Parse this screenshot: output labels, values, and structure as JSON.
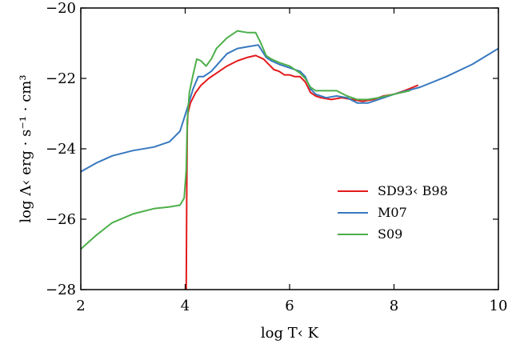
{
  "chart_data": {
    "type": "line",
    "xlabel": "log T‹ K",
    "ylabel": "log Λ‹ erg · s⁻¹ · cm³",
    "xlim": [
      2,
      10
    ],
    "ylim": [
      -28,
      -20
    ],
    "xticks": [
      2,
      4,
      6,
      8,
      10
    ],
    "yticks": [
      -28,
      -26,
      -24,
      -22,
      -20
    ],
    "ytick_labels": [
      "−28",
      "−26",
      "−24",
      "−22",
      "−20"
    ],
    "grid": false,
    "legend": {
      "position": "center-right"
    },
    "series": [
      {
        "name": "SD93‹ B98",
        "color": "#e31a1c",
        "x": [
          4.02,
          4.03,
          4.04,
          4.05,
          4.1,
          4.2,
          4.3,
          4.45,
          4.6,
          4.8,
          5.0,
          5.2,
          5.35,
          5.5,
          5.6,
          5.7,
          5.8,
          5.9,
          6.0,
          6.1,
          6.2,
          6.3,
          6.4,
          6.5,
          6.6,
          6.8,
          7.0,
          7.2,
          7.4,
          7.6,
          7.8,
          8.0,
          8.2,
          8.45
        ],
        "y": [
          -28.0,
          -25.0,
          -23.4,
          -23.0,
          -22.7,
          -22.4,
          -22.2,
          -22.0,
          -21.85,
          -21.65,
          -21.5,
          -21.4,
          -21.35,
          -21.45,
          -21.6,
          -21.75,
          -21.8,
          -21.9,
          -21.9,
          -21.95,
          -21.95,
          -22.1,
          -22.4,
          -22.5,
          -22.55,
          -22.6,
          -22.55,
          -22.6,
          -22.65,
          -22.6,
          -22.5,
          -22.45,
          -22.35,
          -22.2
        ]
      },
      {
        "name": "M07",
        "color": "#3778bf",
        "x": [
          2.0,
          2.3,
          2.6,
          3.0,
          3.4,
          3.7,
          3.9,
          4.05,
          4.15,
          4.25,
          4.35,
          4.5,
          4.65,
          4.8,
          5.0,
          5.2,
          5.4,
          5.55,
          5.65,
          5.8,
          6.0,
          6.2,
          6.3,
          6.4,
          6.5,
          6.7,
          6.9,
          7.1,
          7.3,
          7.5,
          7.7,
          8.0,
          8.5,
          9.0,
          9.5,
          10.0
        ],
        "y": [
          -24.65,
          -24.4,
          -24.2,
          -24.05,
          -23.95,
          -23.8,
          -23.5,
          -22.8,
          -22.3,
          -21.95,
          -21.95,
          -21.8,
          -21.55,
          -21.3,
          -21.15,
          -21.1,
          -21.05,
          -21.4,
          -21.5,
          -21.6,
          -21.7,
          -21.8,
          -21.95,
          -22.3,
          -22.45,
          -22.55,
          -22.5,
          -22.55,
          -22.7,
          -22.7,
          -22.6,
          -22.45,
          -22.25,
          -21.95,
          -21.6,
          -21.15
        ]
      },
      {
        "name": "S09",
        "color": "#4daf4a",
        "x": [
          2.0,
          2.3,
          2.6,
          3.0,
          3.4,
          3.7,
          3.9,
          3.98,
          4.02,
          4.04,
          4.08,
          4.15,
          4.22,
          4.3,
          4.4,
          4.5,
          4.6,
          4.8,
          5.0,
          5.2,
          5.35,
          5.45,
          5.55,
          5.65,
          5.8,
          6.0,
          6.2,
          6.3,
          6.4,
          6.5,
          6.7,
          6.9,
          7.1,
          7.3,
          7.5,
          7.7,
          8.0,
          8.3
        ],
        "y": [
          -26.85,
          -26.45,
          -26.1,
          -25.85,
          -25.7,
          -25.65,
          -25.6,
          -25.4,
          -24.6,
          -23.2,
          -22.4,
          -21.9,
          -21.45,
          -21.5,
          -21.65,
          -21.45,
          -21.15,
          -20.85,
          -20.65,
          -20.7,
          -20.7,
          -21.0,
          -21.35,
          -21.45,
          -21.55,
          -21.65,
          -21.85,
          -22.0,
          -22.25,
          -22.35,
          -22.35,
          -22.35,
          -22.5,
          -22.6,
          -22.6,
          -22.55,
          -22.45,
          -22.35
        ]
      }
    ]
  }
}
